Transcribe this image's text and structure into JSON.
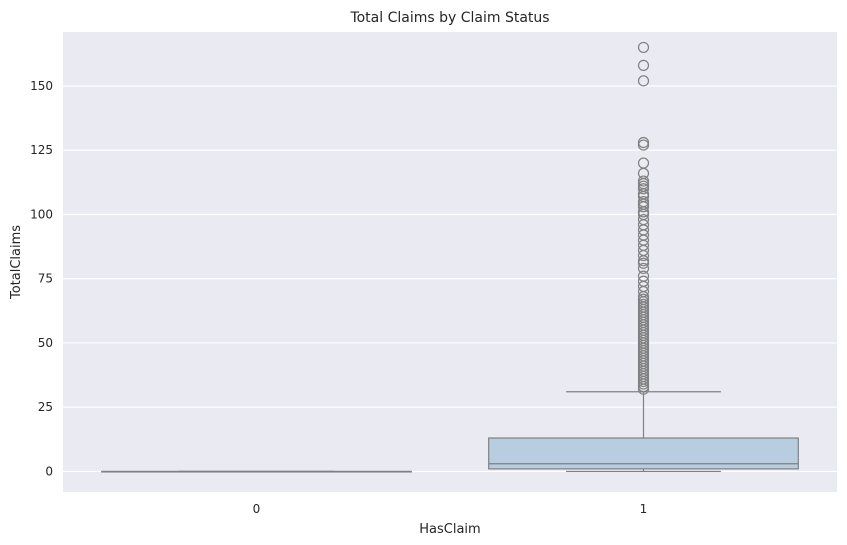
{
  "chart_data": {
    "type": "boxplot",
    "title": "Total Claims by Claim Status",
    "xlabel": "HasClaim",
    "ylabel": "TotalClaims",
    "categories": [
      "0",
      "1"
    ],
    "y_ticks": [
      "0",
      "25",
      "50",
      "75",
      "100",
      "125",
      "150"
    ],
    "ylim": [
      -8,
      171
    ],
    "grid": true,
    "colors": {
      "background": "#eaeaf2",
      "box_fill": "#b8cde0",
      "line": "#808080",
      "grid": "#ffffff"
    },
    "series": [
      {
        "category": "0",
        "q1": 0,
        "median": 0,
        "q3": 0,
        "whisker_low": 0,
        "whisker_high": 0,
        "outliers": []
      },
      {
        "category": "1",
        "q1": 1,
        "median": 3,
        "q3": 13,
        "whisker_low": 0,
        "whisker_high": 31,
        "outliers": [
          32,
          33,
          34,
          35,
          36,
          37,
          38,
          39,
          40,
          41,
          42,
          43,
          44,
          45,
          46,
          47,
          48,
          49,
          50,
          51,
          52,
          53,
          54,
          55,
          56,
          57,
          58,
          59,
          60,
          61,
          62,
          63,
          64,
          65,
          66,
          67,
          68,
          70,
          72,
          74,
          76,
          79,
          81,
          82,
          84,
          86,
          88,
          90,
          92,
          94,
          96,
          98,
          100,
          101,
          103,
          104,
          105,
          107,
          108,
          110,
          111,
          112,
          113,
          116,
          120,
          127,
          128,
          152,
          158,
          165
        ]
      }
    ]
  }
}
